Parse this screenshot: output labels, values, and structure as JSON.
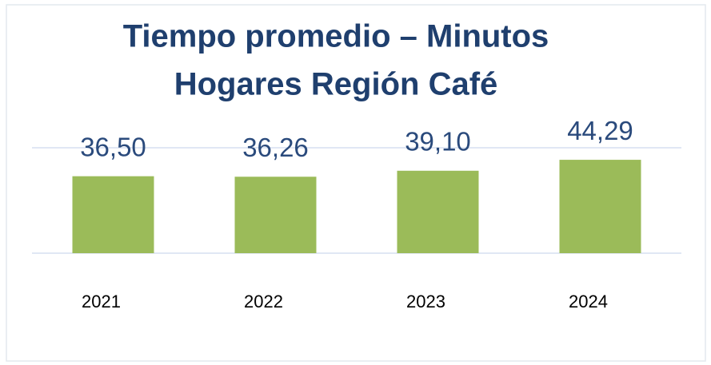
{
  "chart_data": {
    "type": "bar",
    "title": [
      "Tiempo promedio – Minutos",
      "Hogares Región Café"
    ],
    "categories": [
      "2021",
      "2022",
      "2023",
      "2024"
    ],
    "values": [
      36.5,
      36.26,
      39.1,
      44.29
    ],
    "value_labels": [
      "36,50",
      "36,26",
      "39,10",
      "44,29"
    ],
    "color": "#9bbb59",
    "ylim": [
      0,
      50
    ],
    "yticks": [
      0,
      50
    ],
    "grid": true
  }
}
